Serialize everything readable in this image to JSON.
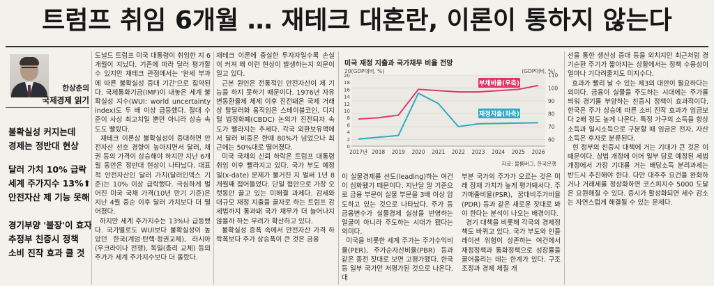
{
  "headline": "트럼프 취임 6개월 … 재테크 대혼란, 이론이 통하지 않는다",
  "byline": {
    "name": "한상춘의",
    "column": "국제경제 읽기"
  },
  "subheads": [
    [
      "불확실성 커지는데",
      "경제는 정반대 현상"
    ],
    [
      "달러 가치 10% 급락",
      "세계 주가지수 13%⬆",
      "안전자산 제 기능 못해"
    ],
    [
      "경기부양 '불장'이 효자",
      "추정부 친증시 정책",
      "소비 진작 효과 클 것"
    ]
  ],
  "columns": {
    "col1": "도널드 트럼프 미국 대통령이 취임한 지 6개월이 지났다. 기존에 파라 달러 평가할 수 있지만 재테크 관점에서는 '완세 부과에 따른 불확실성 증대 기간'으로 집약된다. 국제통화기금(IMF)이 내놓은 세계 불확실성 지수(WUI: world uncertainty index)도 두 배 이상 급등했다. 절대 수준이 사상 최고치일 뿐만 아니라 상승 속도도 빨랐다.\n재테크 이론상 불확실성이 증대하면 안전자산 선호 경향이 높아지면서 달러, 채권 등의 가격이 상승해야 하지만 지난 6개월 동안은 정반대 현상이 나타났다. 대표적 안전자산인 달러 가치(달러인덱스 기준)는 10% 이상 급락했다. 극심하게 벌어진 미국 국채 가격(10년 만기 기준)은 지난 4월 중순 이후 달러 가치보다 더 떨어졌다.\n하지만 세계 주가지수는 13%나 급등했다. 국가별로도 WUI보다 불확실성이 높았던 한국(계엄·탄핵·정권교체), 러시아(우크라이나 전쟁), 독일(총리 교체) 등의 주가가 세계 주가지수보다 더 올랐다.",
    "col2": "재테크 이론에 충실한 투자자일수록 손실이 커져 왜 이런 현상이 발생하는지 의문이 일고 있다.\n근본 원인은 전통적인 안전자산이 제 기능을 하지 못하기 때문이다. 1976년 자유변동환율제 체제 이후 진전돼온 국제 거래상 탈달러화 움직임은 스테이블코인, 디지털 법정화폐(CBDC) 논의가 진전되자 속도가 빨라지는 추세다. 각국 외환보유액에서 달러 비중은 한때 80%가 넘었으나 최근에는 50%대로 떨어졌다.\n미국 국채의 신뢰 하락은 트럼프 대통령 취임 이후 빨라지고 있다. 국가 부도 예정일(x-date) 문제가 불거진 지 벌써 1년 8개월째 접어들었다. 단일 협안으로 가장 오랫동안 끌고 있는 미해결 과제다. 감세와 대규모 재정 지출을 골자로 하는 트럼프 감세법까지 통과돼 국가 채무가 더 늘어나지 않을까 하는 우려가 확산하고 있다.\n불확실성 증폭 속에서 안전자산 가격 하락폭보다 주가 상승폭이 큰 것은 금융",
    "col3": "이 실물경제를 선도(leading)하는 여건이 심화됐기 때문이다. 지난달 말 기준으로 금융 부문이 실물 부문을 3배 이상 압도하고 있는 것으로 나타났다. 주가 등 금융변수가 실물경제 실상을 반영하는 얼굴이 아니라 주도하는 시대가 됐다는 의미다.\n미국을 비롯한 세계 주가는 주가수익비율(PER), 주가순자산비율(PBR) 등과 같은 종전 잣대로 보면 고평가됐다. 한국 등 일부 국가만 저평가된 것으로 나온다. 대",
    "col4": "부분 국가의 주가가 오르는 것은 미래 잠재 가치가 높게 평가돼서다. 주가매출비율(PSR), 꿈대비주가비율(PDR) 등과 같은 새로운 잣대로 봐야 한다는 분석이 나오는 배경이다.\n경기 대책을 비롯해 각국의 경제정책도 바뀌고 있다. 국가 부도와 인플레이션 위험이 상존하는 여건에서 재정정책과 통화정책으로 성장률을 끌어올리는 데는 한계가 있다. 구조조정과 경제 체질 개",
    "col5": "선을 통한 생산성 증대 등을 외치지만 최근처럼 경기순환 주기가 짧아지는 상황에서는 정책 수용성이 얼마나 기다려줄지도 미지수다.\n효과가 빨리 날 수 있는 제3의 대안이 필요하다는 의미다. 금융이 실물을 주도하는 시대에는 주가를 띄워 경기를 부양하는 친증시 정책이 효과적이다. 한국은 주가 상승에 따른 소비 진작 효과가 임금보다 2배 정도 높게 나온다. 특정 가구의 소득을 항상소득과 일시소득으로 구분할 때 임금은 전자, 자산소득은 후자로 분류된다.\n현 정부의 친증시 대책에 거는 기대가 큰 것은 이 때문이다. 상법 개정에 이어 일부 당로 예정된 세법 개정에서 가장 기대를 거는 배당소득 분리과세는 반드시 추진해야 한다. 다만 대주주 요건을 완화하거나 거래세를 정상화하면 코스피지수 5000 도달은 요원해질 수 있다. 증시가 활성화되면 세수 감소는 자연스럽게 해결될 수 있는 문제다."
  },
  "chart": {
    "title": "미국 재정 지출과 국가채무 비율 전망",
    "unit_left": "20(GDP대비, %)",
    "unit_right": "(GDP대비, %)",
    "source": "자료: 블룸버그, 한국은행",
    "colors": {
      "debt": "#e0356a",
      "spending": "#2fa9c4",
      "label_bg_debt": "#e0356a",
      "label_bg_spend": "#2fa9c4"
    }
  },
  "chart_data": {
    "type": "line",
    "title": "미국 재정 지출과 국가채무 비율 전망",
    "x": [
      "2017년",
      "2018",
      "2019",
      "2020",
      "2021",
      "2022",
      "2023",
      "2024",
      "2025",
      "2026"
    ],
    "series": [
      {
        "name": "부채비율(우축)",
        "axis": "right",
        "values": [
          76,
          77,
          79,
          99,
          98,
          97,
          97,
          98,
          99,
          102
        ]
      },
      {
        "name": "재정지출(좌축)",
        "axis": "left",
        "values": [
          2.0,
          2.5,
          3.0,
          14.9,
          12.0,
          5.5,
          6.3,
          6.4,
          6.5,
          6.6
        ]
      }
    ],
    "left_axis": {
      "ticks": [
        0,
        2,
        4,
        6,
        8,
        10,
        12,
        14,
        16,
        18,
        20
      ],
      "range": [
        0,
        20
      ]
    },
    "right_axis": {
      "ticks": [
        60,
        70,
        80,
        90,
        100,
        110
      ],
      "range": [
        55,
        110
      ]
    }
  }
}
